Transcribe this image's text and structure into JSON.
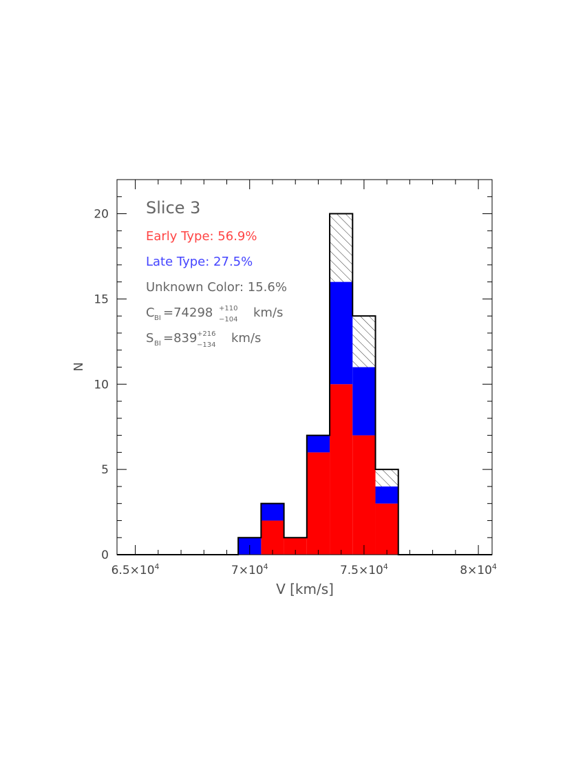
{
  "chart_data": {
    "type": "bar",
    "subtype": "stacked-histogram",
    "title": "Slice 3",
    "xlabel": "V [km/s]",
    "ylabel": "N",
    "xlim": [
      64200,
      80600
    ],
    "ylim": [
      0,
      22
    ],
    "bin_width": 1000,
    "bins_start": [
      69500,
      70500,
      71500,
      72500,
      73500,
      74500,
      75500
    ],
    "x_ticks": [
      {
        "value": 65000,
        "mantissa": "6.5×10",
        "exp": "4"
      },
      {
        "value": 70000,
        "mantissa": "7×10",
        "exp": "4"
      },
      {
        "value": 75000,
        "mantissa": "7.5×10",
        "exp": "4"
      },
      {
        "value": 80000,
        "mantissa": "8×10",
        "exp": "4"
      }
    ],
    "y_ticks": [
      {
        "value": 0,
        "label": "0"
      },
      {
        "value": 5,
        "label": "5"
      },
      {
        "value": 10,
        "label": "10"
      },
      {
        "value": 15,
        "label": "15"
      },
      {
        "value": 20,
        "label": "20"
      }
    ],
    "series": [
      {
        "name": "Early Type",
        "color": "#ff0000",
        "values": [
          0,
          2,
          1,
          6,
          10,
          7,
          3
        ]
      },
      {
        "name": "Late Type",
        "color": "#0000ff",
        "values": [
          1,
          1,
          0,
          1,
          6,
          4,
          1
        ]
      },
      {
        "name": "Unknown Color",
        "color": "hatched",
        "values": [
          0,
          0,
          0,
          0,
          4,
          3,
          1
        ]
      }
    ],
    "annotations": {
      "early": "Early Type: 56.9%",
      "late": "Late Type: 27.5%",
      "unknown": "Unknown Color: 15.6%",
      "cbi_sym": "C",
      "cbi_sub": "BI",
      "cbi_main": "=74298",
      "cbi_plus": "+110",
      "cbi_minus": "−104",
      "cbi_unit": "km/s",
      "sbi_sym": "S",
      "sbi_sub": "BI",
      "sbi_main": "=839",
      "sbi_plus": "+216",
      "sbi_minus": "−134",
      "sbi_unit": "km/s"
    },
    "grid": false,
    "legend": "none"
  }
}
